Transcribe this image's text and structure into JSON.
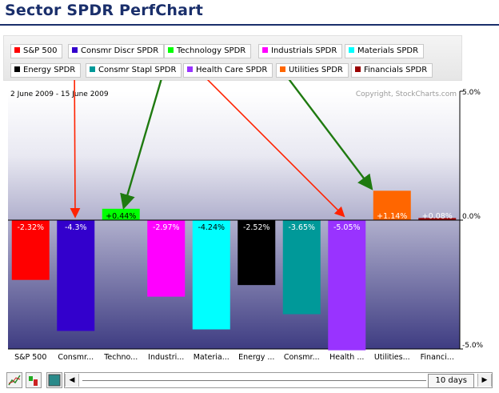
{
  "page": {
    "title": "Sector SPDR PerfChart"
  },
  "legend": [
    {
      "label": "S&P 500",
      "color": "#ff0000"
    },
    {
      "label": "Consmr Discr SPDR",
      "color": "#3300cc"
    },
    {
      "label": "Technology SPDR",
      "color": "#00ff00"
    },
    {
      "label": "Industrials SPDR",
      "color": "#ff00ff"
    },
    {
      "label": "Materials SPDR",
      "color": "#00ffff"
    },
    {
      "label": "Energy SPDR",
      "color": "#000000"
    },
    {
      "label": "Consmr Stapl SPDR",
      "color": "#009999"
    },
    {
      "label": "Health Care SPDR",
      "color": "#9933ff"
    },
    {
      "label": "Utilities SPDR",
      "color": "#ff6600"
    },
    {
      "label": "Financials SPDR",
      "color": "#990000"
    }
  ],
  "chart_data": {
    "type": "bar",
    "subtitle": "2 June 2009 - 15 June 2009",
    "copyright": "Copyright, StockCharts.com",
    "categories": [
      "S&P 500",
      "Consmr...",
      "Techno...",
      "Industri...",
      "Materia...",
      "Energy ...",
      "Consmr...",
      "Health ...",
      "Utilities...",
      "Financi..."
    ],
    "values": [
      -2.32,
      -4.3,
      0.44,
      -2.97,
      -4.24,
      -2.52,
      -3.65,
      -5.05,
      1.14,
      0.08
    ],
    "value_labels": [
      "-2.32%",
      "-4.3%",
      "+0.44%",
      "-2.97%",
      "-4.24%",
      "-2.52%",
      "-3.65%",
      "-5.05%",
      "+1.14%",
      "+0.08%"
    ],
    "colors": [
      "#ff0000",
      "#3300cc",
      "#00ff00",
      "#ff00ff",
      "#00ffff",
      "#000000",
      "#009999",
      "#9933ff",
      "#ff6600",
      "#990000"
    ],
    "ylim": [
      -5.0,
      5.0
    ],
    "yticks": [
      5.0,
      0.0,
      -5.0
    ],
    "ytick_labels": [
      "5.0%",
      "0.0%",
      "-5.0%"
    ],
    "annotations": [
      {
        "type": "arrow",
        "color": "red",
        "points_to": "Consmr Discr SPDR"
      },
      {
        "type": "arrow",
        "color": "green",
        "points_to": "Technology SPDR"
      },
      {
        "type": "arrow",
        "color": "red",
        "points_to": "Health Care SPDR"
      },
      {
        "type": "arrow",
        "color": "green",
        "points_to": "Utilities SPDR"
      }
    ]
  },
  "controls": {
    "period_label": "10 days",
    "left_arrow": "◀",
    "right_arrow": "▶"
  }
}
